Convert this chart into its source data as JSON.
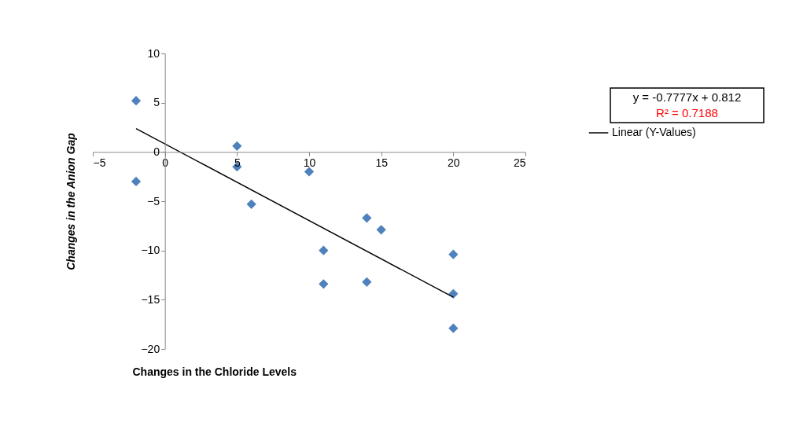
{
  "chart_data": {
    "type": "scatter",
    "xlabel": "Changes in the Chloride Levels",
    "ylabel": "Changes in the Anion Gap",
    "annotations": [
      "y = -0.7777x + 0.812",
      "R² = 0.7188"
    ],
    "series": [
      {
        "type": "scatter",
        "color": "#4f81bd",
        "marker": "diamond",
        "x": [
          -2,
          -2,
          5,
          5,
          6,
          10,
          11,
          11,
          14,
          15,
          14,
          20,
          20,
          20
        ],
        "values": [
          5.2,
          -3.0,
          0.6,
          -1.5,
          -5.3,
          -2.0,
          -10.0,
          -13.4,
          -6.7,
          -7.9,
          -13.2,
          -10.4,
          -14.4,
          -17.9
        ]
      },
      {
        "type": "line",
        "name": "Linear (Y-Values)",
        "color": "#000000",
        "marker": "none",
        "line_style": "solid",
        "x": [
          -2,
          20
        ],
        "values": [
          2.37,
          -14.74
        ]
      }
    ],
    "xlim": [
      -5,
      25
    ],
    "xticks": [
      -5,
      0,
      5,
      10,
      15,
      20,
      25
    ],
    "ylim": [
      -20,
      10
    ],
    "yticks": [
      -20,
      -15,
      -10,
      -5,
      0,
      5,
      10
    ],
    "grid": false,
    "legend": "right"
  }
}
